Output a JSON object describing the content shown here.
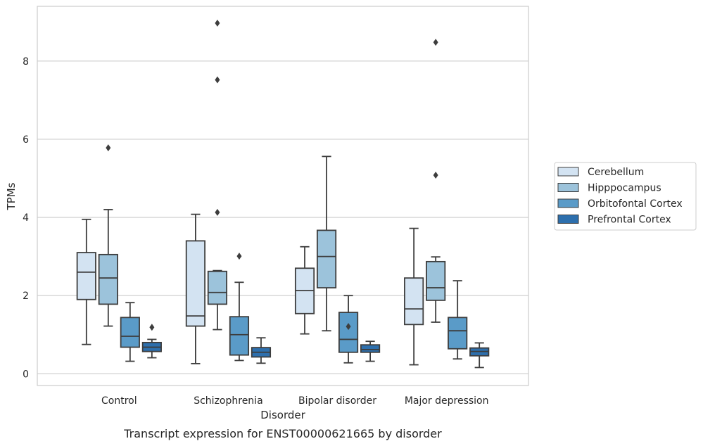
{
  "chart_data": {
    "type": "box",
    "caption": "Transcript expression for ENST00000621665 by disorder",
    "xlabel": "Disorder",
    "ylabel": "TPMs",
    "ylim": [
      -0.3,
      9.4
    ],
    "yticks": [
      0,
      2,
      4,
      6,
      8
    ],
    "grid": "horizontal",
    "legend_position": "right",
    "categories": [
      "Control",
      "Schizophrenia",
      "Bipolar disorder",
      "Major depression"
    ],
    "series": [
      {
        "name": "Cerebellum",
        "color": "#d3e3f2",
        "boxes": [
          {
            "whislo": 0.75,
            "q1": 1.9,
            "med": 2.6,
            "q3": 3.1,
            "whishi": 3.95,
            "fliers": []
          },
          {
            "whislo": 0.26,
            "q1": 1.22,
            "med": 1.48,
            "q3": 3.4,
            "whishi": 4.08,
            "fliers": []
          },
          {
            "whislo": 1.02,
            "q1": 1.54,
            "med": 2.13,
            "q3": 2.7,
            "whishi": 3.25,
            "fliers": []
          },
          {
            "whislo": 0.23,
            "q1": 1.26,
            "med": 1.66,
            "q3": 2.45,
            "whishi": 3.72,
            "fliers": []
          }
        ]
      },
      {
        "name": "Hipppocampus",
        "color": "#9cc3db",
        "boxes": [
          {
            "whislo": 1.22,
            "q1": 1.78,
            "med": 2.45,
            "q3": 3.05,
            "whishi": 4.2,
            "fliers": [
              5.78
            ]
          },
          {
            "whislo": 1.13,
            "q1": 1.78,
            "med": 2.08,
            "q3": 2.62,
            "whishi": 2.64,
            "fliers": [
              4.13,
              7.52,
              8.97
            ]
          },
          {
            "whislo": 1.1,
            "q1": 2.2,
            "med": 3.0,
            "q3": 3.67,
            "whishi": 5.56,
            "fliers": []
          },
          {
            "whislo": 1.32,
            "q1": 1.88,
            "med": 2.2,
            "q3": 2.87,
            "whishi": 2.99,
            "fliers": [
              5.08,
              8.48
            ]
          }
        ]
      },
      {
        "name": "Orbitofontal Cortex",
        "color": "#5a9bc8",
        "boxes": [
          {
            "whislo": 0.32,
            "q1": 0.68,
            "med": 0.96,
            "q3": 1.44,
            "whishi": 1.82,
            "fliers": []
          },
          {
            "whislo": 0.34,
            "q1": 0.48,
            "med": 1.0,
            "q3": 1.46,
            "whishi": 2.34,
            "fliers": [
              3.01
            ]
          },
          {
            "whislo": 0.28,
            "q1": 0.55,
            "med": 0.88,
            "q3": 1.57,
            "whishi": 2.0,
            "fliers": [
              1.21
            ]
          },
          {
            "whislo": 0.38,
            "q1": 0.64,
            "med": 1.1,
            "q3": 1.44,
            "whishi": 2.38,
            "fliers": []
          }
        ]
      },
      {
        "name": "Prefrontal Cortex",
        "color": "#2d6fad",
        "boxes": [
          {
            "whislo": 0.41,
            "q1": 0.57,
            "med": 0.68,
            "q3": 0.8,
            "whishi": 0.88,
            "fliers": [
              1.19
            ]
          },
          {
            "whislo": 0.27,
            "q1": 0.43,
            "med": 0.55,
            "q3": 0.67,
            "whishi": 0.92,
            "fliers": []
          },
          {
            "whislo": 0.32,
            "q1": 0.55,
            "med": 0.62,
            "q3": 0.74,
            "whishi": 0.83,
            "fliers": []
          },
          {
            "whislo": 0.16,
            "q1": 0.46,
            "med": 0.57,
            "q3": 0.66,
            "whishi": 0.79,
            "fliers": []
          }
        ]
      }
    ]
  }
}
